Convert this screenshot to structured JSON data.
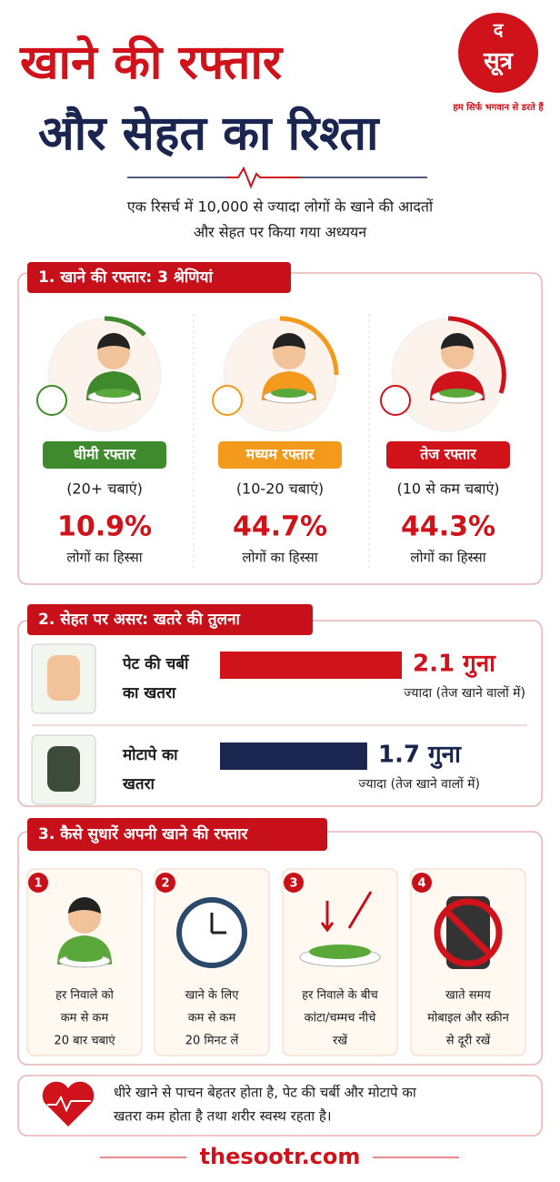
{
  "header": {
    "title_line1": "खाने की रफ्तार",
    "title_line2": "और सेहत का रिश्ता"
  },
  "logo": {
    "letter": "द",
    "name": "सूत्र",
    "tagline": "हम सिर्फ भगवान से डरते हैं"
  },
  "intro": {
    "line1": "एक रिसर्च में 10,000 से ज्यादा लोगों के खाने की आदतों",
    "line2": "और सेहत पर किया गया अध्ययन"
  },
  "section1": {
    "heading": "1. खाने की रफ्तार: 3 श्रेणियां",
    "items": [
      {
        "label": "धीमी रफ्तार",
        "chews": "(20+ चबाएं)",
        "share": "10.9%",
        "caption": "लोगों का हिस्सा",
        "color": "#3f8a2c"
      },
      {
        "label": "मध्यम रफ्तार",
        "chews": "(10-20 चबाएं)",
        "share": "44.7%",
        "caption": "लोगों का हिस्सा",
        "color": "#f39a1c"
      },
      {
        "label": "तेज रफ्तार",
        "chews": "(10 से कम चबाएं)",
        "share": "44.3%",
        "caption": "लोगों का हिस्सा",
        "color": "#d0121b"
      }
    ]
  },
  "section2": {
    "heading": "2. सेहत पर असर: खतरे की तुलना",
    "items": [
      {
        "label_line1": "पेट की चर्बी",
        "label_line2": "का खतरा",
        "value": 2.1,
        "value_label": "2.1 गुना",
        "note": "ज्यादा (तेज खाने वालों में)",
        "color": "#d0121b"
      },
      {
        "label_line1": "मोटापे का",
        "label_line2": "खतरा",
        "value": 1.7,
        "value_label": "1.7 गुना",
        "note": "ज्यादा (तेज खाने वालों में)",
        "color": "#1a2550"
      }
    ]
  },
  "section3": {
    "heading": "3. कैसे सुधारें अपनी खाने की रफ्तार",
    "steps": [
      {
        "number": "1",
        "lines": [
          "हर निवाले को",
          "कम से कम",
          "20 बार चबाएं"
        ]
      },
      {
        "number": "2",
        "lines": [
          "खाने के लिए",
          "कम से कम",
          "20 मिनट लें"
        ]
      },
      {
        "number": "3",
        "lines": [
          "हर निवाले के बीच",
          "कांटा/चम्मच नीचे",
          "रखें"
        ]
      },
      {
        "number": "4",
        "lines": [
          "खाते समय",
          "मोबाइल और स्क्रीन",
          "से दूरी रखें"
        ]
      }
    ]
  },
  "footer_note": {
    "line1": "धीरे खाने से पाचन बेहतर होता है, पेट की चर्बी और मोटापे का",
    "line2": "खतरा कम होता है तथा शरीर स्वस्थ रहता है।"
  },
  "website": "thesootr.com"
}
